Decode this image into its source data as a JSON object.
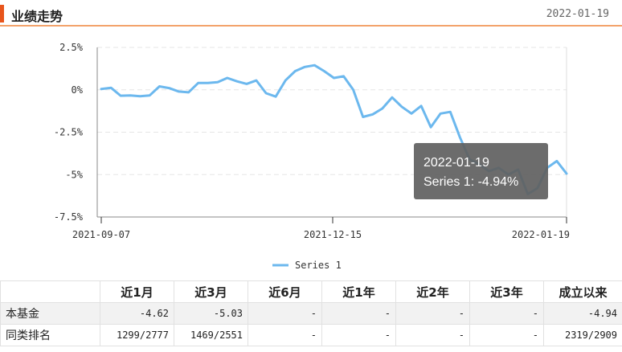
{
  "header": {
    "title": "业绩走势",
    "date": "2022-01-19"
  },
  "chart_data": {
    "type": "line",
    "series": [
      {
        "name": "Series 1",
        "color": "#6cb8ee",
        "values": [
          0.05,
          0.12,
          -0.35,
          -0.33,
          -0.38,
          -0.33,
          0.2,
          0.1,
          -0.1,
          -0.15,
          0.4,
          0.4,
          0.45,
          0.7,
          0.5,
          0.35,
          0.55,
          -0.2,
          -0.4,
          0.55,
          1.1,
          1.35,
          1.45,
          1.1,
          0.7,
          0.8,
          0.0,
          -1.6,
          -1.45,
          -1.1,
          -0.45,
          -1.0,
          -1.4,
          -0.95,
          -2.2,
          -1.4,
          -1.3,
          -2.8,
          -4.1,
          -4.4,
          -4.8,
          -4.6,
          -5.0,
          -4.7,
          -6.15,
          -5.8,
          -4.6,
          -4.2,
          -4.94
        ]
      }
    ],
    "ylim": [
      -7.5,
      2.5
    ],
    "yticks": [
      "2.5%",
      "0%",
      "-2.5%",
      "-5%",
      "-7.5%"
    ],
    "xtick_labels": [
      "2021-09-07",
      "2021-12-15",
      "2022-01-19"
    ],
    "grid": true,
    "legend_position": "bottom-center",
    "tooltip": {
      "date": "2022-01-19",
      "text": "Series 1: -4.94%"
    }
  },
  "table": {
    "headers": [
      "",
      "近1月",
      "近3月",
      "近6月",
      "近1年",
      "近2年",
      "近3年",
      "成立以来"
    ],
    "rows": [
      {
        "label": "本基金",
        "cells": [
          "-4.62",
          "-5.03",
          "-",
          "-",
          "-",
          "-",
          "-4.94"
        ]
      },
      {
        "label": "同类排名",
        "cells": [
          "1299/2777",
          "1469/2551",
          "-",
          "-",
          "-",
          "-",
          "2319/2909"
        ]
      }
    ]
  }
}
